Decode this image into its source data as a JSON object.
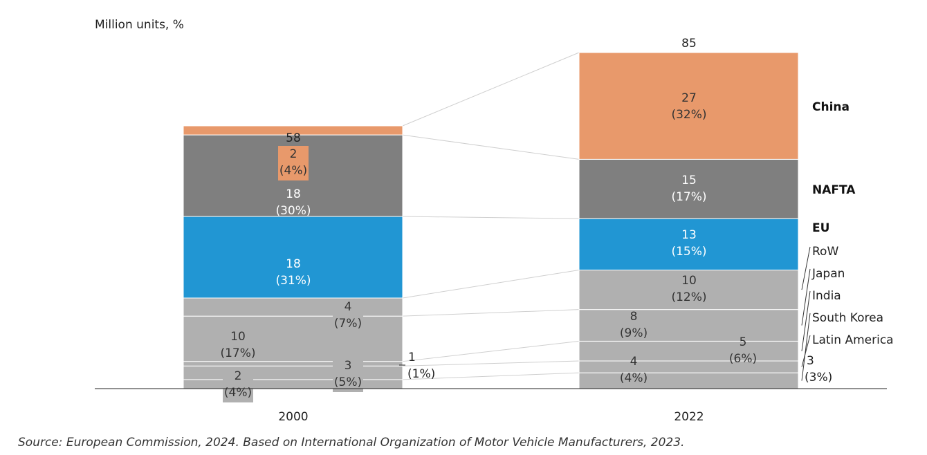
{
  "chart_data": {
    "type": "bar",
    "stacked": true,
    "unit_label": "Million units, %",
    "categories": [
      "2000",
      "2022"
    ],
    "totals": [
      "58",
      "85"
    ],
    "series": [
      {
        "name": "South Korea",
        "values": [
          2,
          4
        ],
        "labels": [
          [
            "2",
            "(4%)"
          ],
          [
            "4",
            "(4%)"
          ]
        ],
        "color": "#b0b0b0"
      },
      {
        "name": "Latin America",
        "values": [
          3,
          3
        ],
        "labels": [
          [
            "3",
            "(5%)"
          ],
          [
            "3",
            "(3%)"
          ]
        ],
        "color": "#b0b0b0"
      },
      {
        "name": "India",
        "values": [
          1,
          5
        ],
        "labels": [
          [
            "1",
            "(1%)"
          ],
          [
            "5",
            "(6%)"
          ]
        ],
        "color": "#b0b0b0"
      },
      {
        "name": "Japan",
        "values": [
          10,
          8
        ],
        "labels": [
          [
            "10",
            "(17%)"
          ],
          [
            "8",
            "(9%)"
          ]
        ],
        "color": "#b0b0b0"
      },
      {
        "name": "RoW",
        "values": [
          4,
          10
        ],
        "labels": [
          [
            "4",
            "(7%)"
          ],
          [
            "10",
            "(12%)"
          ]
        ],
        "color": "#b0b0b0"
      },
      {
        "name": "EU",
        "values": [
          18,
          13
        ],
        "labels": [
          [
            "18",
            "(31%)"
          ],
          [
            "13",
            "(15%)"
          ]
        ],
        "color": "#2196d3"
      },
      {
        "name": "NAFTA",
        "values": [
          18,
          15
        ],
        "labels": [
          [
            "18",
            "(30%)"
          ],
          [
            "15",
            "(17%)"
          ]
        ],
        "color": "#7f7f7f"
      },
      {
        "name": "China",
        "values": [
          2,
          27
        ],
        "labels": [
          [
            "2",
            "(4%)"
          ],
          [
            "27",
            "(32%)"
          ]
        ],
        "color": "#e8996b"
      }
    ]
  },
  "source": "Source: European Commission, 2024. Based on International Organization of Motor Vehicle Manufacturers, 2023."
}
